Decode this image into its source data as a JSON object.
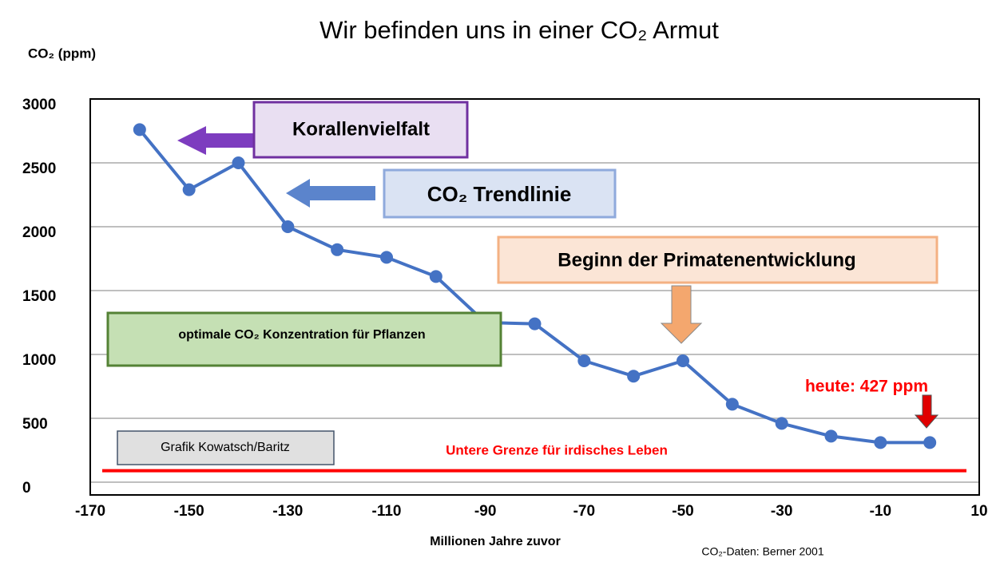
{
  "chart_data": {
    "type": "line",
    "title": "Wir befinden uns in einer CO₂ Armut",
    "y_label": "CO₂ (ppm)",
    "x_label": "Millionen Jahre zuvor",
    "source": "CO₂-Daten: Berner 2001",
    "x": [
      -160,
      -150,
      -140,
      -130,
      -120,
      -110,
      -100,
      -90,
      -80,
      -70,
      -60,
      -50,
      -40,
      -30,
      -20,
      -10,
      0
    ],
    "series": [
      {
        "name": "CO₂ Trendlinie",
        "color": "#4472c4",
        "values": [
          2760,
          2290,
          2500,
          2000,
          1820,
          1760,
          1610,
          1250,
          1240,
          950,
          830,
          950,
          610,
          460,
          360,
          310,
          310
        ]
      }
    ],
    "xlim": [
      -170,
      10
    ],
    "xticks": [
      -170,
      -150,
      -130,
      -110,
      -90,
      -70,
      -50,
      -30,
      -10,
      10
    ],
    "ylim": [
      -100,
      3000
    ],
    "yticks": [
      0,
      500,
      1000,
      1500,
      2000,
      2500,
      3000
    ],
    "grid": true,
    "lower_limit": {
      "value": 90,
      "label": "Untere Grenze für irdisches Leben",
      "color": "#ff0000"
    },
    "annotations": [
      "Korallenvielfalt",
      "CO₂ Trendlinie",
      "Beginn der Primatenentwicklung",
      "optimale CO₂ Konzentration für Pflanzen",
      "Grafik Kowatsch/Baritz",
      "heute: 427 ppm"
    ]
  }
}
